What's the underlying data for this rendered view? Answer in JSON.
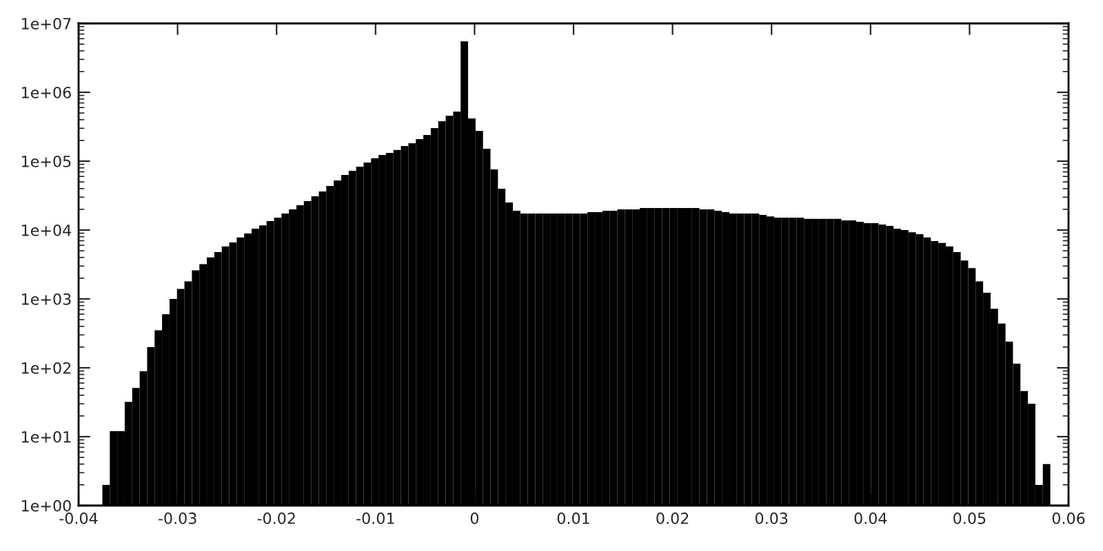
{
  "chart_data": {
    "type": "histogram",
    "color": "#000000",
    "log": "y",
    "grid": false,
    "xlim": [
      -0.04,
      0.06
    ],
    "xticks": [
      -0.04,
      -0.03,
      -0.02,
      -0.01,
      0,
      0.01,
      0.02,
      0.03,
      0.04,
      0.05,
      0.06
    ],
    "ylim": [
      1,
      10000000
    ],
    "yticks": [
      {
        "value": 1,
        "label": "1e+00"
      },
      {
        "value": 10,
        "label": "1e+01"
      },
      {
        "value": 100,
        "label": "1e+02"
      },
      {
        "value": 1000,
        "label": "1e+03"
      },
      {
        "value": 10000,
        "label": "1e+04"
      },
      {
        "value": 100000,
        "label": "1e+05"
      },
      {
        "value": 1000000,
        "label": "1e+06"
      },
      {
        "value": 10000000,
        "label": "1e+07"
      }
    ],
    "bins": [
      -0.0376,
      -0.036846,
      -0.036092,
      -0.035338,
      -0.034584,
      -0.03383,
      -0.033076,
      -0.032322,
      -0.031568,
      -0.030814,
      -0.03006,
      -0.029306,
      -0.028552,
      -0.027798,
      -0.027044,
      -0.02629,
      -0.025536,
      -0.024782,
      -0.024028,
      -0.023274,
      -0.02252,
      -0.021766,
      -0.021012,
      -0.020258,
      -0.019504,
      -0.01875,
      -0.017996,
      -0.017242,
      -0.016488,
      -0.015734,
      -0.01498,
      -0.014226,
      -0.013472,
      -0.012718,
      -0.011964,
      -0.01121,
      -0.010456,
      -0.009702,
      -0.008948,
      -0.008194,
      -0.00744,
      -0.006686,
      -0.005932,
      -0.005178,
      -0.004424,
      -0.00367,
      -0.002916,
      -0.002162,
      -0.001408,
      -0.000654,
      0.0001,
      0.000854,
      0.001608,
      0.002362,
      0.003116,
      0.00387,
      0.004624,
      0.005378,
      0.006132,
      0.006886,
      0.00764,
      0.008394,
      0.009148,
      0.009902,
      0.010656,
      0.01141,
      0.012164,
      0.012918,
      0.013672,
      0.014426,
      0.01518,
      0.015934,
      0.016688,
      0.017442,
      0.018196,
      0.01895,
      0.019704,
      0.020458,
      0.021212,
      0.021966,
      0.02272,
      0.023474,
      0.024228,
      0.024982,
      0.025736,
      0.02649,
      0.027244,
      0.027998,
      0.028752,
      0.029506,
      0.03026,
      0.031014,
      0.031768,
      0.032522,
      0.033276,
      0.03403,
      0.034784,
      0.035538,
      0.036292,
      0.037046,
      0.0378,
      0.038554,
      0.039308,
      0.040062,
      0.040816,
      0.04157,
      0.042324,
      0.043078,
      0.043832,
      0.044586,
      0.04534,
      0.046094,
      0.046848,
      0.047602,
      0.048356,
      0.04911,
      0.049864,
      0.050618,
      0.051372,
      0.052126,
      0.05288,
      0.053634,
      0.054388,
      0.055142,
      0.055896,
      0.05665,
      0.057404,
      0.058158
    ],
    "values": [
      2,
      12,
      12,
      32,
      51,
      89,
      200,
      350,
      600,
      1000,
      1400,
      1800,
      2600,
      3200,
      4000,
      4800,
      5800,
      6600,
      7800,
      8900,
      10500,
      11700,
      13500,
      15100,
      17400,
      20000,
      22900,
      26300,
      30900,
      36300,
      43600,
      52500,
      63100,
      72400,
      83200,
      95500,
      110000,
      123000,
      132000,
      145000,
      166000,
      182000,
      209000,
      240000,
      302000,
      380000,
      457000,
      525000,
      5500000,
      417000,
      275000,
      151000,
      75900,
      39800,
      25100,
      19100,
      17400,
      17400,
      17400,
      17400,
      17400,
      17400,
      17400,
      17400,
      17400,
      18200,
      18200,
      19100,
      19100,
      20000,
      20000,
      20000,
      20900,
      20900,
      20900,
      20900,
      20900,
      20900,
      20900,
      20900,
      20000,
      20000,
      19100,
      18200,
      17400,
      17400,
      17400,
      17400,
      16600,
      15800,
      15100,
      15100,
      15100,
      15100,
      14500,
      14500,
      14500,
      14500,
      14500,
      13800,
      13800,
      13200,
      12600,
      12600,
      12000,
      11500,
      10500,
      10000,
      9300,
      8700,
      7800,
      6900,
      6500,
      5800,
      4800,
      3600,
      2800,
      1800,
      1230,
      720,
      440,
      240,
      115,
      46,
      30,
      2,
      4
    ]
  }
}
